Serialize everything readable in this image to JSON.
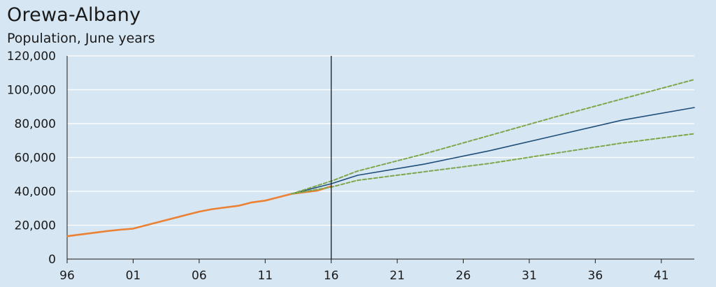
{
  "chart_data": {
    "type": "line",
    "title": "Orewa-Albany",
    "subtitle": "Population, June years",
    "xlabel": "",
    "ylabel": "",
    "xlim": [
      1996,
      2043.5
    ],
    "ylim": [
      0,
      120000
    ],
    "grid": true,
    "y_ticks": [
      0,
      20000,
      40000,
      60000,
      80000,
      100000,
      120000
    ],
    "y_tick_labels": [
      "0",
      "20,000",
      "40,000",
      "60,000",
      "80,000",
      "100,000",
      "120,000"
    ],
    "x_ticks": [
      1996,
      2001,
      2006,
      2011,
      2016,
      2021,
      2026,
      2031,
      2036,
      2041
    ],
    "x_tick_labels": [
      "96",
      "01",
      "06",
      "11",
      "16",
      "21",
      "26",
      "31",
      "36",
      "41"
    ],
    "divider_x": 2016,
    "series": [
      {
        "style": "solid",
        "color": "#ec8033",
        "x": [
          1996,
          1997,
          1998,
          1999,
          2000,
          2001,
          2002,
          2003,
          2004,
          2005,
          2006,
          2007,
          2008,
          2009,
          2010,
          2011,
          2012,
          2013,
          2014,
          2015,
          2016
        ],
        "y": [
          13500,
          14500,
          15500,
          16500,
          17300,
          18000,
          20000,
          22000,
          24000,
          26000,
          28000,
          29500,
          30500,
          31500,
          33500,
          34500,
          36500,
          38500,
          39500,
          40500,
          43000
        ]
      },
      {
        "style": "solid",
        "color": "#1f4e79",
        "x": [
          2013,
          2016,
          2018,
          2023,
          2028,
          2033,
          2038,
          2043.5
        ],
        "y": [
          38500,
          44500,
          49500,
          56000,
          64000,
          73000,
          82000,
          89500
        ]
      },
      {
        "style": "dashed",
        "color": "#7ea64a",
        "x": [
          2013,
          2016,
          2018,
          2023,
          2028,
          2033,
          2038,
          2043.5
        ],
        "y": [
          38500,
          46000,
          52000,
          62000,
          73000,
          84000,
          94500,
          106000
        ]
      },
      {
        "style": "dashed",
        "color": "#7ea64a",
        "x": [
          2013,
          2016,
          2018,
          2023,
          2028,
          2033,
          2038,
          2043.5
        ],
        "y": [
          38500,
          42500,
          46500,
          51500,
          56500,
          62500,
          68500,
          74000
        ]
      }
    ]
  }
}
